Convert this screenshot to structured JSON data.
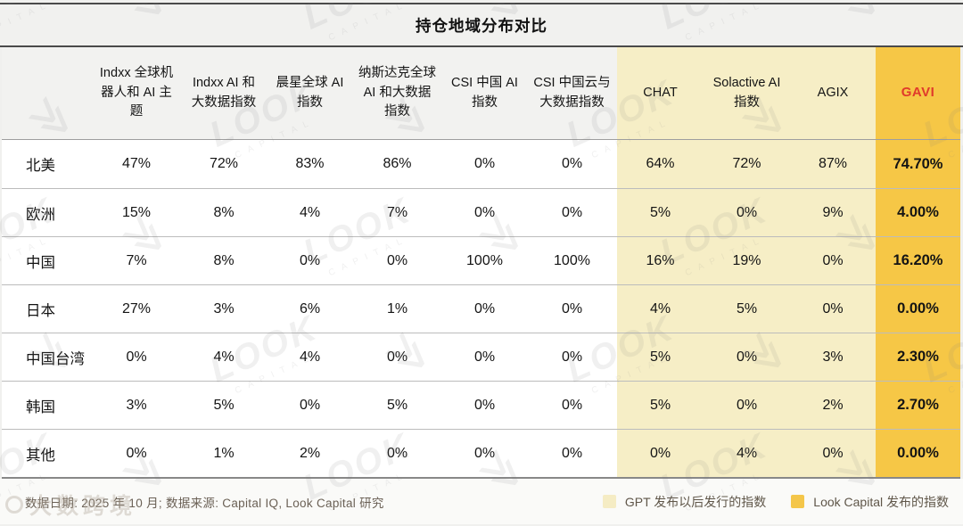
{
  "title": "持仓地域分布对比",
  "chart_data": {
    "type": "table",
    "title": "持仓地域分布对比",
    "columns": [
      "Indxx 全球机器人和 AI 主题",
      "Indxx AI 和大数据指数",
      "晨星全球 AI 指数",
      "纳斯达克全球 AI 和大数据指数",
      "CSI 中国 AI 指数",
      "CSI 中国云与大数据指数",
      "CHAT",
      "Solactive AI 指数",
      "AGIX",
      "GAVI"
    ],
    "row_labels": [
      "北美",
      "欧洲",
      "中国",
      "日本",
      "中国台湾",
      "韩国",
      "其他"
    ],
    "rows": [
      {
        "label": "北美",
        "values": [
          "47%",
          "72%",
          "83%",
          "86%",
          "0%",
          "0%",
          "64%",
          "72%",
          "87%",
          "74.70%"
        ]
      },
      {
        "label": "欧洲",
        "values": [
          "15%",
          "8%",
          "4%",
          "7%",
          "0%",
          "0%",
          "5%",
          "0%",
          "9%",
          "4.00%"
        ]
      },
      {
        "label": "中国",
        "values": [
          "7%",
          "8%",
          "0%",
          "0%",
          "100%",
          "100%",
          "16%",
          "19%",
          "0%",
          "16.20%"
        ]
      },
      {
        "label": "日本",
        "values": [
          "27%",
          "3%",
          "6%",
          "1%",
          "0%",
          "0%",
          "4%",
          "5%",
          "0%",
          "0.00%"
        ]
      },
      {
        "label": "中国台湾",
        "values": [
          "0%",
          "4%",
          "4%",
          "0%",
          "0%",
          "0%",
          "5%",
          "0%",
          "3%",
          "2.30%"
        ]
      },
      {
        "label": "韩国",
        "values": [
          "3%",
          "5%",
          "0%",
          "5%",
          "0%",
          "0%",
          "5%",
          "0%",
          "2%",
          "2.70%"
        ]
      },
      {
        "label": "其他",
        "values": [
          "0%",
          "1%",
          "2%",
          "0%",
          "0%",
          "0%",
          "0%",
          "4%",
          "0%",
          "0.00%"
        ]
      }
    ],
    "highlighted_columns": {
      "gpt_era": [
        "CHAT",
        "Solactive AI 指数",
        "AGIX"
      ],
      "look_capital": [
        "GAVI"
      ]
    },
    "legend": [
      {
        "label": "GPT 发布以后发行的指数",
        "color": "#f5ecc4"
      },
      {
        "label": "Look Capital 发布的指数",
        "color": "#f4c64a"
      }
    ],
    "source_note": "数据日期: 2025 年 10 月; 数据来源: Capital IQ, Look Capital 研究"
  },
  "colors": {
    "page_bg": "#f0f0ee",
    "band_bg": "#f2f2f0",
    "row_bg": "#ffffff",
    "lite_yellow": "#f6eec6",
    "gold": "#f6c746",
    "gavi_red": "#e03a2b",
    "dark_border": "#4a4a4a",
    "row_border": "#bcbcbc",
    "footer_text": "#6b6156"
  },
  "watermark": {
    "brand": "LOOK",
    "caps": "CAPITAL",
    "corner_text": "大数跨境"
  }
}
